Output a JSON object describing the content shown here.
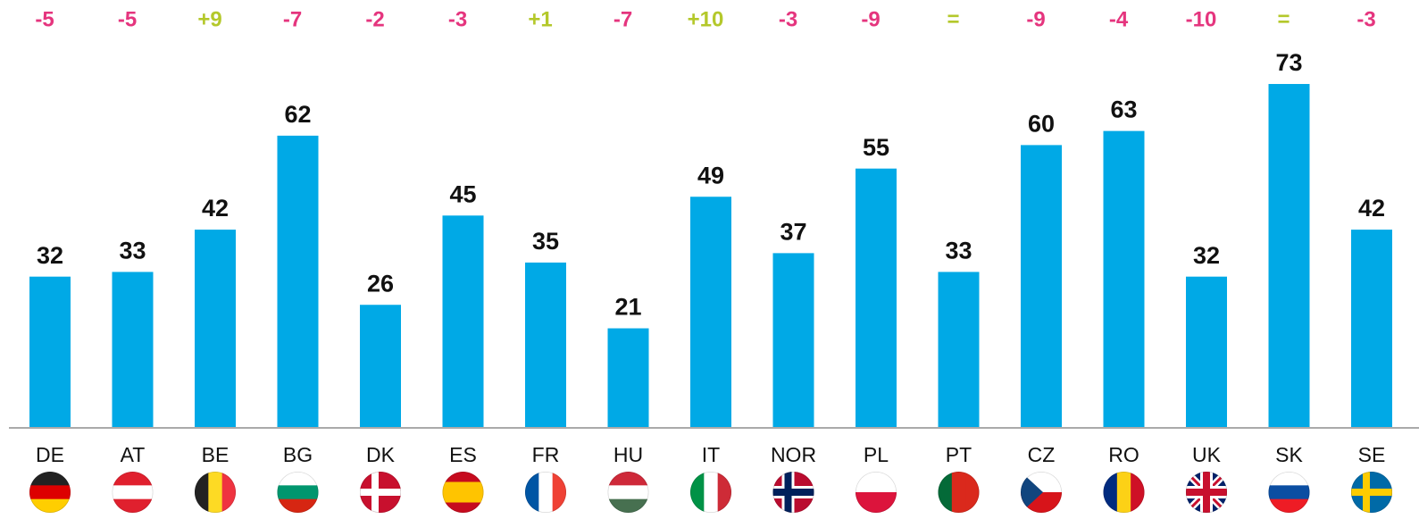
{
  "chart_data": {
    "type": "bar",
    "categories": [
      "DE",
      "AT",
      "BE",
      "BG",
      "DK",
      "ES",
      "FR",
      "HU",
      "IT",
      "NOR",
      "PL",
      "PT",
      "CZ",
      "RO",
      "UK",
      "SK",
      "SE"
    ],
    "values": [
      32,
      33,
      42,
      62,
      26,
      45,
      35,
      21,
      49,
      37,
      55,
      33,
      60,
      63,
      32,
      73,
      42
    ],
    "color": "#00a9e6",
    "changes": [
      "-5",
      "-5",
      "+9",
      "-7",
      "-2",
      "-3",
      "+1",
      "-7",
      "+10",
      "-3",
      "-9",
      "=",
      "-9",
      "-4",
      "-10",
      "=",
      "-3"
    ],
    "change_colors": {
      "down": "#e5357e",
      "up": "#b4c82b"
    }
  }
}
